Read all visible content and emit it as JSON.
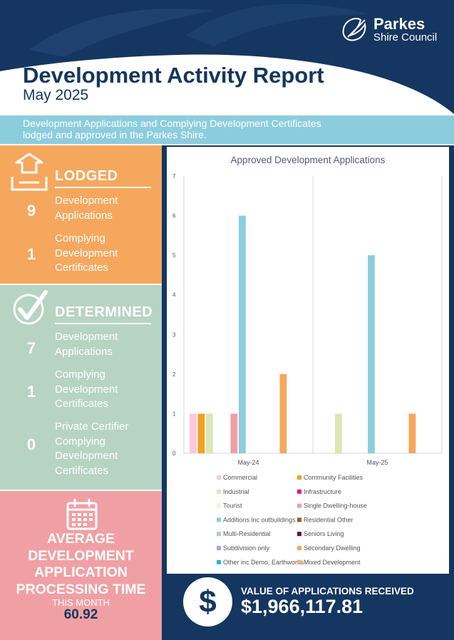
{
  "header": {
    "logo_name": "Parkes",
    "logo_sub": "Shire Council",
    "title": "Development Activity Report",
    "subtitle": "May 2025"
  },
  "intro": {
    "line1": "Development Applications and Complying Development Certificates",
    "line2": "lodged and approved in the Parkes Shire."
  },
  "lodged": {
    "title": "LODGED",
    "stats": [
      {
        "value": "9",
        "label_lines": [
          "Development",
          "Applications"
        ]
      },
      {
        "value": "1",
        "label_lines": [
          "Complying",
          "Development",
          "Certificates"
        ]
      }
    ]
  },
  "determined": {
    "title": "DETERMINED",
    "stats": [
      {
        "value": "7",
        "label_lines": [
          "Development",
          "Applications"
        ]
      },
      {
        "value": "1",
        "label_lines": [
          "Complying",
          "Development",
          "Certificates"
        ]
      },
      {
        "value": "0",
        "label_lines": [
          "Private Certifier",
          "Complying",
          "Development",
          "Certificates"
        ]
      }
    ]
  },
  "average": {
    "title_lines": [
      "AVERAGE",
      "DEVELOPMENT",
      "APPLICATION",
      "PROCESSING TIME"
    ],
    "sub": "THIS MONTH",
    "value": "60.92"
  },
  "value_received": {
    "symbol": "$",
    "label": "VALUE OF APPLICATIONS RECEIVED",
    "amount": "$1,966,117.81"
  },
  "colors": {
    "navy": "#143660",
    "orange": "#f6a75e",
    "sage": "#b7d4c3",
    "pink": "#f0a0a4",
    "teal": "#8ccddd"
  },
  "chart_data": {
    "type": "bar",
    "title": "Approved Development Applications",
    "categories": [
      "May-24",
      "May-25"
    ],
    "ylim": [
      0,
      7
    ],
    "yticks": [
      "0",
      "1",
      "2",
      "3",
      "4",
      "5",
      "6",
      "7"
    ],
    "grid": "vertical separators",
    "legend_position": "bottom, two columns",
    "series": [
      {
        "name": "Commercial",
        "color": "#f9c9df",
        "values": [
          1,
          0
        ]
      },
      {
        "name": "Community Facilities",
        "color": "#f3a021",
        "values": [
          1,
          0
        ]
      },
      {
        "name": "Industrial",
        "color": "#d9e8b5",
        "values": [
          1,
          1
        ]
      },
      {
        "name": "Infrastructure",
        "color": "#e6158c",
        "values": [
          0,
          0
        ]
      },
      {
        "name": "Tourist",
        "color": "#fbf6bb",
        "values": [
          0,
          0
        ]
      },
      {
        "name": "Single Dwelling-house",
        "color": "#f0a0a4",
        "values": [
          1,
          0
        ]
      },
      {
        "name": "Additions inc outbuildings",
        "color": "#8ccddd",
        "values": [
          6,
          5
        ]
      },
      {
        "name": "Residential Other",
        "color": "#9c5b1c",
        "values": [
          0,
          0
        ]
      },
      {
        "name": "Multi-Residential",
        "color": "#a8d1be",
        "values": [
          0,
          0
        ]
      },
      {
        "name": "Seniors Living",
        "color": "#6d0f3b",
        "values": [
          0,
          0
        ]
      },
      {
        "name": "Subdivision only",
        "color": "#b79de0",
        "values": [
          0,
          0
        ]
      },
      {
        "name": "Secondary Dwelling",
        "color": "#f6a75e",
        "values": [
          2,
          1
        ]
      },
      {
        "name": "Other inc Demo, Earthworks",
        "color": "#2baee5",
        "values": [
          0,
          0
        ]
      },
      {
        "name": "Mixed Development",
        "color": "#f8b073",
        "values": [
          0,
          0
        ]
      }
    ]
  }
}
